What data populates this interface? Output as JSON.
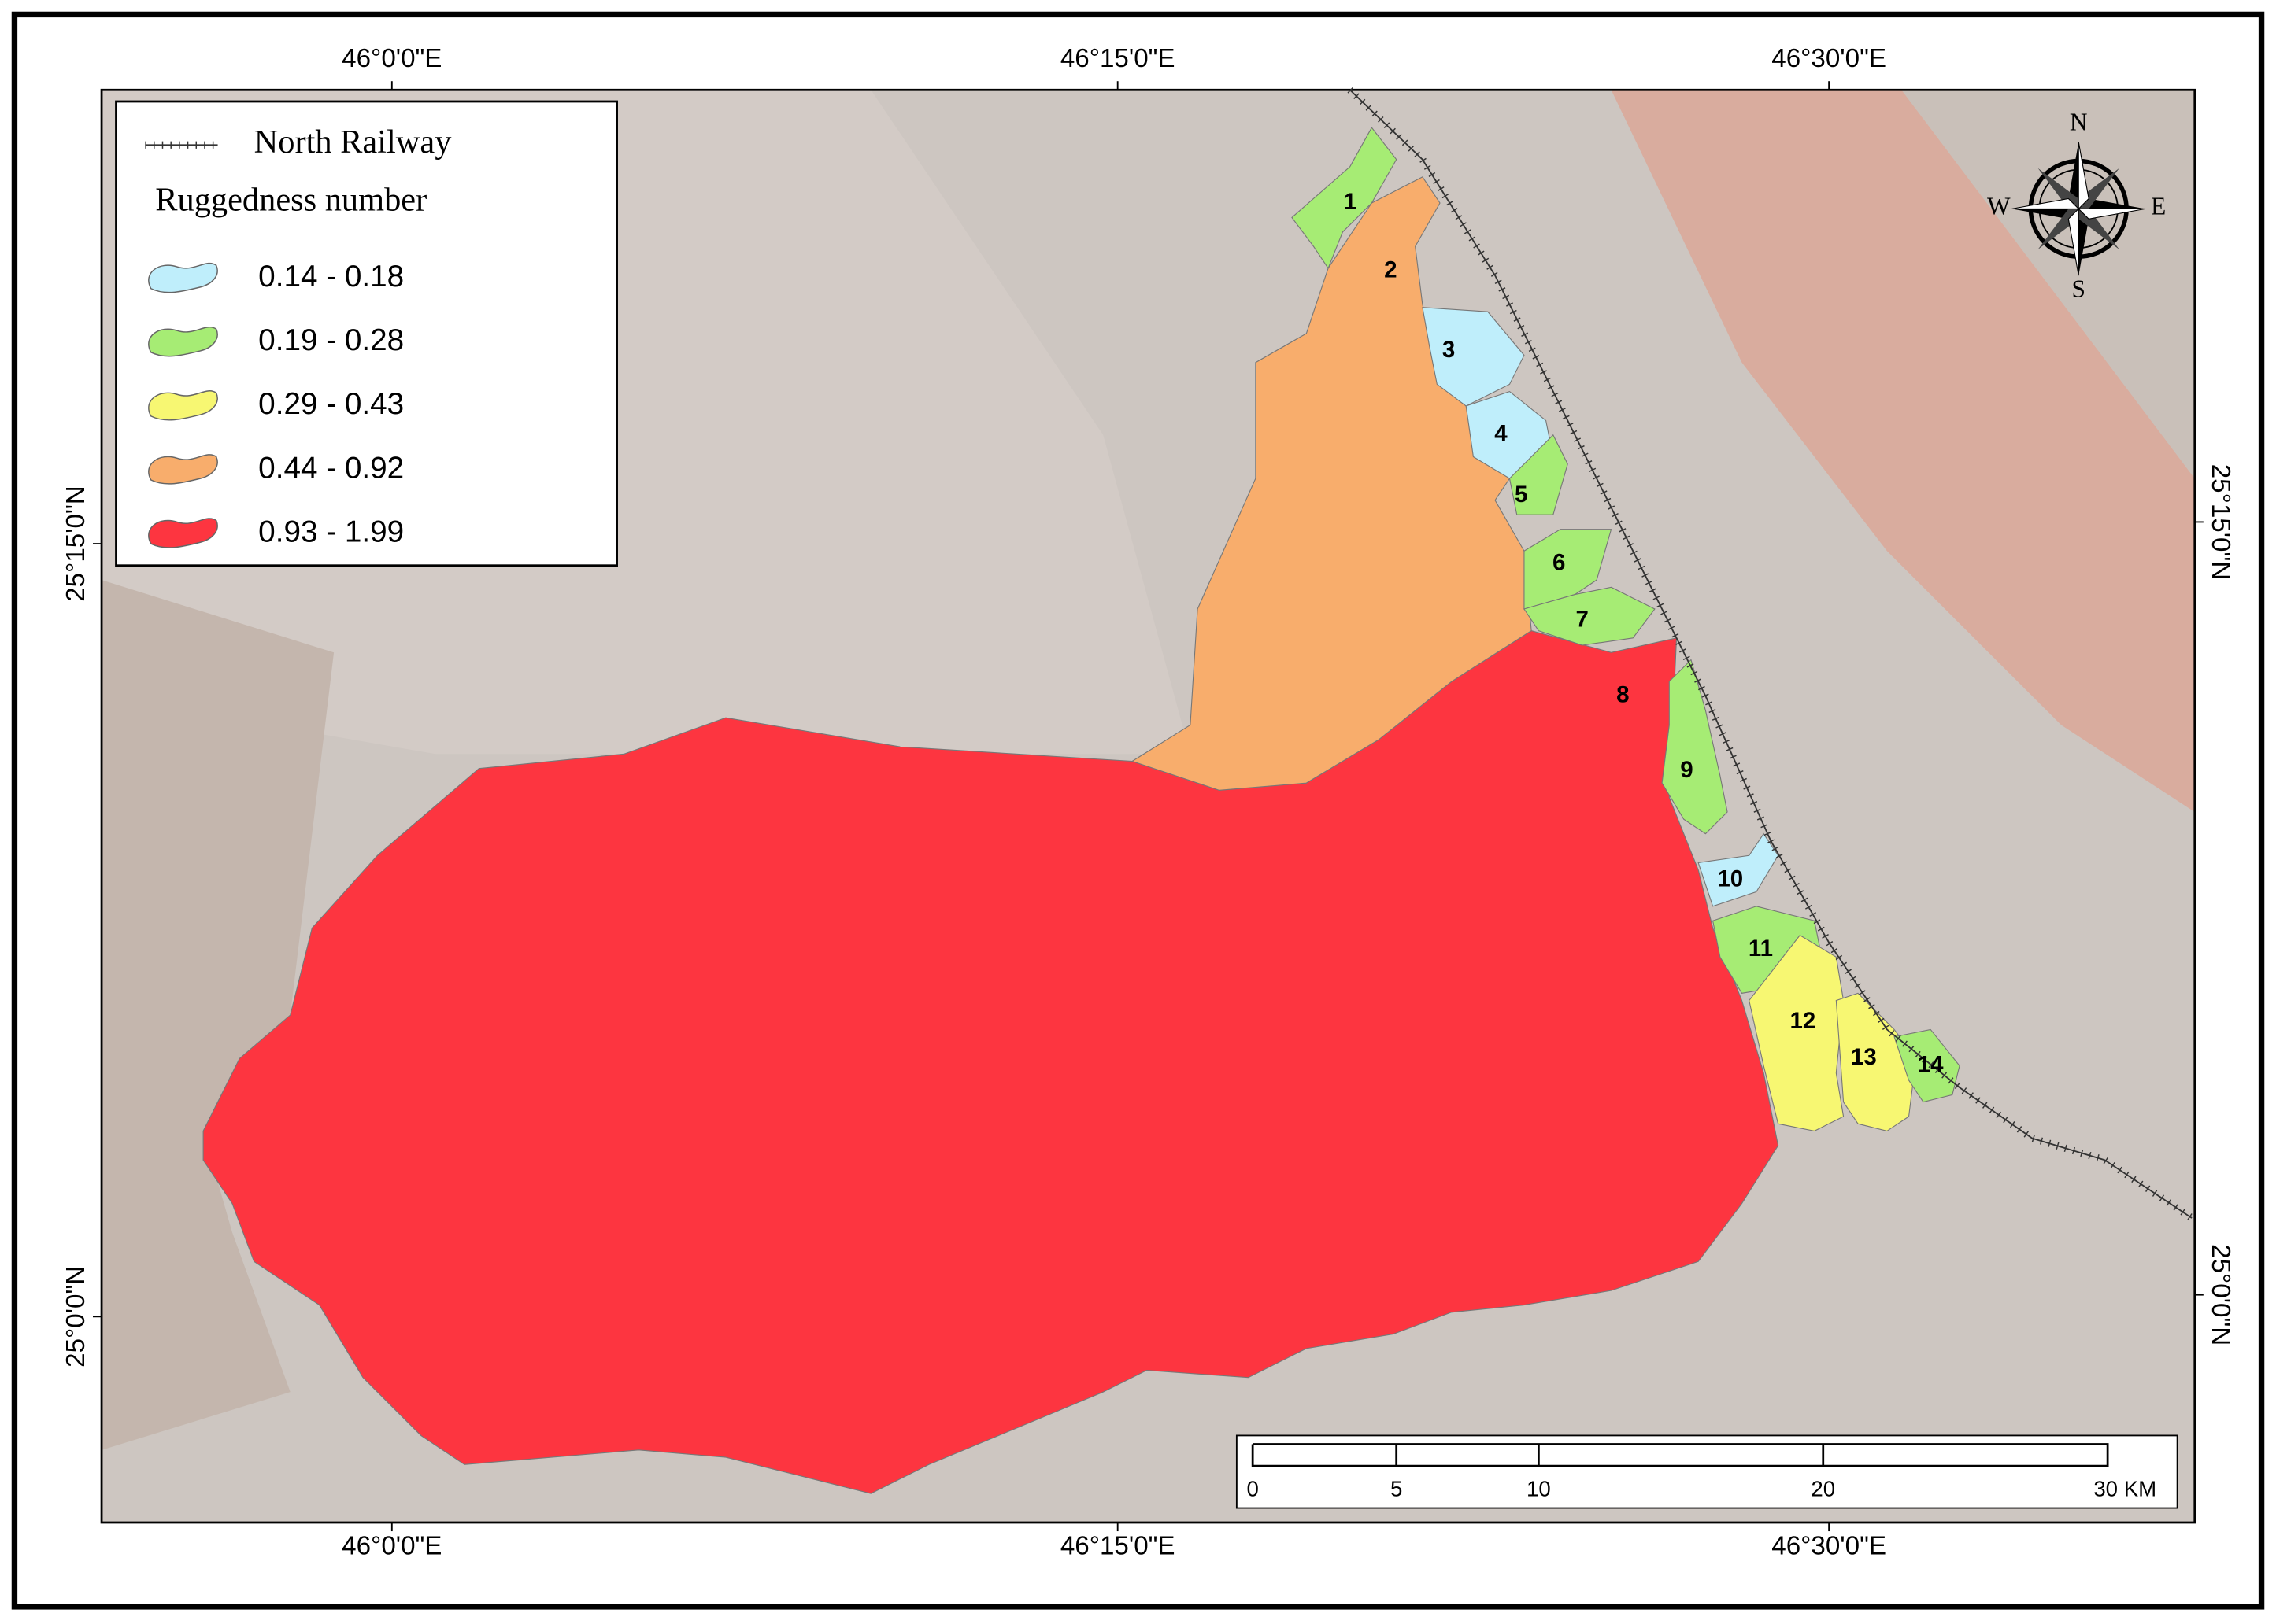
{
  "coordinates": {
    "top": [
      "46°0'0\"E",
      "46°15'0\"E",
      "46°30'0\"E"
    ],
    "bottom": [
      "46°0'0\"E",
      "46°15'0\"E",
      "46°30'0\"E"
    ],
    "left": [
      "25°15'0\"N",
      "25°0'0\"N"
    ],
    "right": [
      "25°15'0\"N",
      "25°0'0\"N"
    ]
  },
  "legend": {
    "railway": "North Railway",
    "title": "Ruggedness number",
    "classes": [
      {
        "label": "0.14 - 0.18",
        "color": "#bfeefb"
      },
      {
        "label": "0.19 - 0.28",
        "color": "#a6ec74"
      },
      {
        "label": "0.29 - 0.43",
        "color": "#f7f772"
      },
      {
        "label": "0.44 - 0.92",
        "color": "#f8ad6c"
      },
      {
        "label": "0.93 - 1.99",
        "color": "#fd3540"
      }
    ]
  },
  "basins": [
    {
      "label": "1",
      "color": "#a6ec74"
    },
    {
      "label": "2",
      "color": "#f8ad6c"
    },
    {
      "label": "3",
      "color": "#bfeefb"
    },
    {
      "label": "4",
      "color": "#bfeefb"
    },
    {
      "label": "5",
      "color": "#a6ec74"
    },
    {
      "label": "6",
      "color": "#a6ec74"
    },
    {
      "label": "7",
      "color": "#a6ec74"
    },
    {
      "label": "8",
      "color": "#fd3540"
    },
    {
      "label": "9",
      "color": "#a6ec74"
    },
    {
      "label": "10",
      "color": "#bfeefb"
    },
    {
      "label": "11",
      "color": "#a6ec74"
    },
    {
      "label": "12",
      "color": "#f7f772"
    },
    {
      "label": "13",
      "color": "#f7f772"
    },
    {
      "label": "14",
      "color": "#a6ec74"
    }
  ],
  "scale_bar": [
    "0",
    "5",
    "10",
    "20",
    "30 KM"
  ],
  "compass": {
    "north": "N",
    "east": "E",
    "south": "S",
    "west": "W"
  }
}
